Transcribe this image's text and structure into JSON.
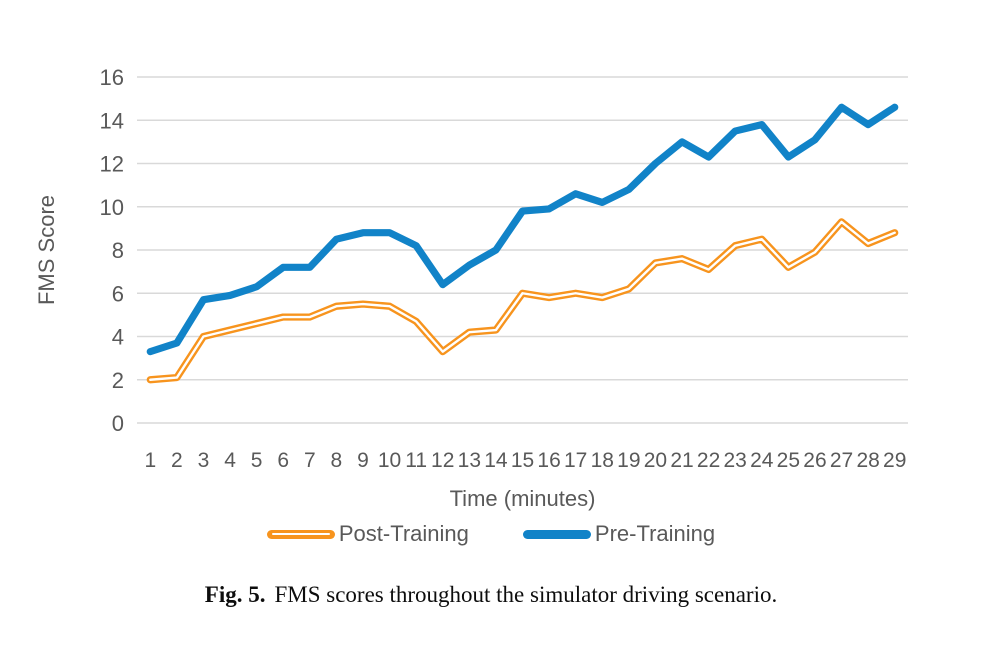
{
  "figure": {
    "caption_label": "Fig. 5.",
    "caption_text": "FMS scores throughout the simulator driving scenario."
  },
  "colors": {
    "pre_training_blue": "#1183C8",
    "post_training_orange": "#F7941E",
    "gridline_gray": "#D9D9D9",
    "axis_text_gray": "#595959",
    "caption_black": "#0d0d0d"
  },
  "chart_data": {
    "type": "line",
    "title": "",
    "xlabel": "Time (minutes)",
    "ylabel": "FMS Score",
    "x": [
      1,
      2,
      3,
      4,
      5,
      6,
      7,
      8,
      9,
      10,
      11,
      12,
      13,
      14,
      15,
      16,
      17,
      18,
      19,
      20,
      21,
      22,
      23,
      24,
      25,
      26,
      27,
      28,
      29
    ],
    "ylim": [
      0,
      16
    ],
    "y_ticks": [
      0,
      2,
      4,
      6,
      8,
      10,
      12,
      14,
      16
    ],
    "grid": true,
    "legend_position": "bottom",
    "series": [
      {
        "name": "Post-Training",
        "color": "#F7941E",
        "style": "double-line",
        "values": [
          2.0,
          2.1,
          4.0,
          4.3,
          4.6,
          4.9,
          4.9,
          5.4,
          5.5,
          5.4,
          4.7,
          3.3,
          4.2,
          4.3,
          6.0,
          5.8,
          6.0,
          5.8,
          6.2,
          7.4,
          7.6,
          7.1,
          8.2,
          8.5,
          7.2,
          7.9,
          9.3,
          8.3,
          8.8
        ]
      },
      {
        "name": "Pre-Training",
        "color": "#1183C8",
        "style": "solid",
        "values": [
          3.3,
          3.7,
          5.7,
          5.9,
          6.3,
          7.2,
          7.2,
          8.5,
          8.8,
          8.8,
          8.2,
          6.4,
          7.3,
          8.0,
          9.8,
          9.9,
          10.6,
          10.2,
          10.8,
          12.0,
          13.0,
          12.3,
          13.5,
          13.8,
          12.3,
          13.1,
          14.6,
          13.8,
          14.6
        ]
      }
    ]
  }
}
